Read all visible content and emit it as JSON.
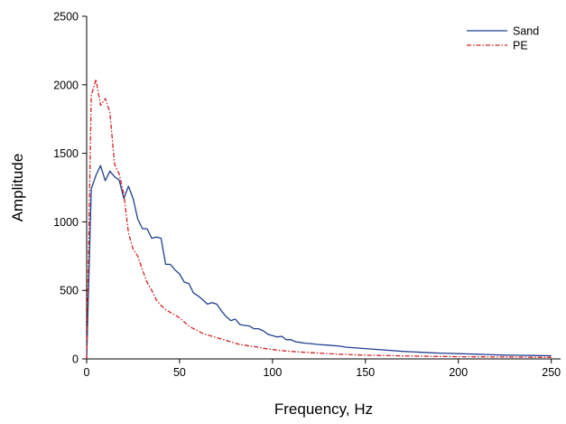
{
  "chart_data": {
    "type": "line",
    "title": "",
    "xlabel": "Frequency, Hz",
    "ylabel": "Amplitude",
    "xlim": [
      0,
      255
    ],
    "ylim": [
      0,
      2500
    ],
    "xticks": [
      0,
      50,
      100,
      150,
      200,
      250
    ],
    "yticks": [
      0,
      500,
      1000,
      1500,
      2000,
      2500
    ],
    "grid": false,
    "legend": "top-right",
    "series": [
      {
        "name": "Sand",
        "color": "#1f3f8f",
        "style": "solid",
        "points": [
          [
            0,
            0
          ],
          [
            2.5,
            1240
          ],
          [
            5,
            1340
          ],
          [
            7.5,
            1410
          ],
          [
            10,
            1300
          ],
          [
            12.5,
            1370
          ],
          [
            15,
            1330
          ],
          [
            17.5,
            1305
          ],
          [
            20,
            1170
          ],
          [
            22.5,
            1260
          ],
          [
            25,
            1170
          ],
          [
            27.5,
            1020
          ],
          [
            30,
            950
          ],
          [
            32.5,
            950
          ],
          [
            35,
            880
          ],
          [
            37.5,
            890
          ],
          [
            40,
            880
          ],
          [
            42.5,
            690
          ],
          [
            45,
            690
          ],
          [
            47.5,
            650
          ],
          [
            50,
            620
          ],
          [
            52.5,
            560
          ],
          [
            55,
            550
          ],
          [
            57.5,
            480
          ],
          [
            60,
            460
          ],
          [
            62.5,
            430
          ],
          [
            65,
            400
          ],
          [
            67.5,
            410
          ],
          [
            70,
            400
          ],
          [
            72.5,
            350
          ],
          [
            75,
            310
          ],
          [
            77.5,
            280
          ],
          [
            80,
            290
          ],
          [
            82.5,
            250
          ],
          [
            85,
            245
          ],
          [
            87.5,
            240
          ],
          [
            90,
            220
          ],
          [
            92.5,
            220
          ],
          [
            95,
            205
          ],
          [
            97.5,
            180
          ],
          [
            100,
            170
          ],
          [
            102.5,
            160
          ],
          [
            105,
            165
          ],
          [
            107.5,
            140
          ],
          [
            110,
            140
          ],
          [
            112.5,
            125
          ],
          [
            115,
            120
          ],
          [
            117.5,
            115
          ],
          [
            120,
            112
          ],
          [
            125,
            105
          ],
          [
            130,
            100
          ],
          [
            135,
            95
          ],
          [
            140,
            85
          ],
          [
            145,
            80
          ],
          [
            150,
            75
          ],
          [
            155,
            70
          ],
          [
            160,
            65
          ],
          [
            165,
            60
          ],
          [
            170,
            55
          ],
          [
            175,
            52
          ],
          [
            180,
            48
          ],
          [
            185,
            45
          ],
          [
            190,
            42
          ],
          [
            195,
            40
          ],
          [
            200,
            38
          ],
          [
            205,
            36
          ],
          [
            210,
            34
          ],
          [
            215,
            32
          ],
          [
            220,
            30
          ],
          [
            225,
            28
          ],
          [
            230,
            27
          ],
          [
            235,
            26
          ],
          [
            240,
            25
          ],
          [
            245,
            24
          ],
          [
            250,
            23
          ]
        ]
      },
      {
        "name": "PE",
        "color": "#d42020",
        "style": "dash-dot",
        "points": [
          [
            0,
            0
          ],
          [
            2.5,
            1920
          ],
          [
            5,
            2040
          ],
          [
            7.5,
            1850
          ],
          [
            10,
            1900
          ],
          [
            12.5,
            1800
          ],
          [
            15,
            1420
          ],
          [
            17.5,
            1350
          ],
          [
            20,
            1200
          ],
          [
            22.5,
            920
          ],
          [
            25,
            800
          ],
          [
            27.5,
            750
          ],
          [
            30,
            650
          ],
          [
            32.5,
            560
          ],
          [
            35,
            500
          ],
          [
            37.5,
            430
          ],
          [
            40,
            390
          ],
          [
            42.5,
            360
          ],
          [
            45,
            340
          ],
          [
            47.5,
            320
          ],
          [
            50,
            300
          ],
          [
            52.5,
            270
          ],
          [
            55,
            240
          ],
          [
            57.5,
            220
          ],
          [
            60,
            205
          ],
          [
            62.5,
            185
          ],
          [
            65,
            175
          ],
          [
            67.5,
            165
          ],
          [
            70,
            155
          ],
          [
            72.5,
            145
          ],
          [
            75,
            135
          ],
          [
            77.5,
            125
          ],
          [
            80,
            115
          ],
          [
            82.5,
            105
          ],
          [
            85,
            100
          ],
          [
            87.5,
            95
          ],
          [
            90,
            90
          ],
          [
            92.5,
            85
          ],
          [
            95,
            78
          ],
          [
            97.5,
            72
          ],
          [
            100,
            68
          ],
          [
            105,
            60
          ],
          [
            110,
            55
          ],
          [
            115,
            50
          ],
          [
            120,
            46
          ],
          [
            125,
            42
          ],
          [
            130,
            38
          ],
          [
            135,
            35
          ],
          [
            140,
            32
          ],
          [
            145,
            30
          ],
          [
            150,
            28
          ],
          [
            155,
            26
          ],
          [
            160,
            25
          ],
          [
            165,
            24
          ],
          [
            170,
            22
          ],
          [
            175,
            21
          ],
          [
            180,
            20
          ],
          [
            185,
            19
          ],
          [
            190,
            18
          ],
          [
            195,
            17
          ],
          [
            200,
            16
          ],
          [
            205,
            16
          ],
          [
            210,
            15
          ],
          [
            215,
            15
          ],
          [
            220,
            14
          ],
          [
            225,
            14
          ],
          [
            230,
            13
          ],
          [
            235,
            13
          ],
          [
            240,
            12
          ],
          [
            245,
            12
          ],
          [
            250,
            12
          ]
        ]
      }
    ]
  }
}
